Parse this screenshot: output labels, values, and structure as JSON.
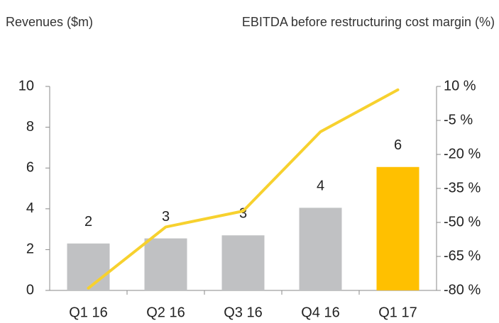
{
  "chart_data": {
    "type": "bar",
    "title": "Revenues ($m)",
    "y2_label": "EBITDA before restructuring cost margin (%)",
    "categories": [
      "Q1 16",
      "Q2 16",
      "Q3 16",
      "Q4 16",
      "Q1 17"
    ],
    "series": [
      {
        "type": "bar",
        "colors": [
          "#c0c1c3",
          "#c0c1c3",
          "#c0c1c3",
          "#c0c1c3",
          "#ffc000"
        ],
        "values": [
          2.3,
          2.55,
          2.7,
          4.05,
          6.05
        ],
        "value_labels": [
          "2",
          "3",
          "3",
          "4",
          "6"
        ]
      },
      {
        "type": "line",
        "axis": "y2",
        "color": "#f7d12e",
        "values": [
          -79,
          -52,
          -45,
          -10,
          8.5
        ]
      }
    ],
    "ylim": [
      0,
      10
    ],
    "yticks": [
      0,
      2,
      4,
      6,
      8,
      10
    ],
    "y2lim": [
      -80,
      10
    ],
    "y2ticks": [
      {
        "value": -80,
        "label": "-80 %"
      },
      {
        "value": -65,
        "label": "-65 %"
      },
      {
        "value": -50,
        "label": "-50 %"
      },
      {
        "value": -35,
        "label": "-35 %"
      },
      {
        "value": -20,
        "label": "-20 %"
      },
      {
        "value": -5,
        "label": "-5 %"
      },
      {
        "value": 10,
        "label": "10 %"
      }
    ]
  }
}
